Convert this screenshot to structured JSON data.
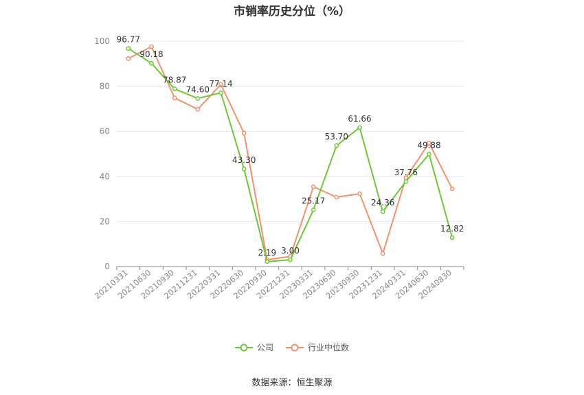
{
  "title": "市销率历史分位（%）",
  "source_note": "数据来源：恒生聚源",
  "colors": {
    "company": "#6cc832",
    "industry": "#f5906a",
    "grid": "#e6e6ef",
    "axis": "#888888",
    "label": "#333333",
    "tick": "#888888"
  },
  "chart_data": {
    "type": "line",
    "title": "市销率历史分位（%）",
    "categories": [
      "20210331",
      "20210630",
      "20210930",
      "20211231",
      "20220331",
      "20220630",
      "20220930",
      "20221231",
      "20230331",
      "20230630",
      "20230930",
      "20231231",
      "20240331",
      "20240630",
      "20240830"
    ],
    "ylim": [
      0,
      100
    ],
    "yticks": [
      0,
      20,
      40,
      60,
      80,
      100
    ],
    "grid": true,
    "legend_position": "bottom",
    "series": [
      {
        "name": "公司",
        "values": [
          96.77,
          90.18,
          78.87,
          74.6,
          77.14,
          43.3,
          2.19,
          3.0,
          25.17,
          53.7,
          61.66,
          24.36,
          37.76,
          49.88,
          12.82
        ],
        "labels": [
          "96.77",
          "90.18",
          "78.87",
          "74.60",
          "77.14",
          "43.30",
          "2.19",
          "3.00",
          "25.17",
          "53.70",
          "61.66",
          "24.36",
          "37.76",
          "49.88",
          "12.82"
        ]
      },
      {
        "name": "行业中位数",
        "values": [
          92.3,
          97.6,
          74.8,
          69.8,
          80.8,
          59.2,
          3.0,
          4.5,
          35.4,
          30.8,
          32.3,
          5.8,
          39.4,
          54.8,
          34.5
        ]
      }
    ]
  }
}
